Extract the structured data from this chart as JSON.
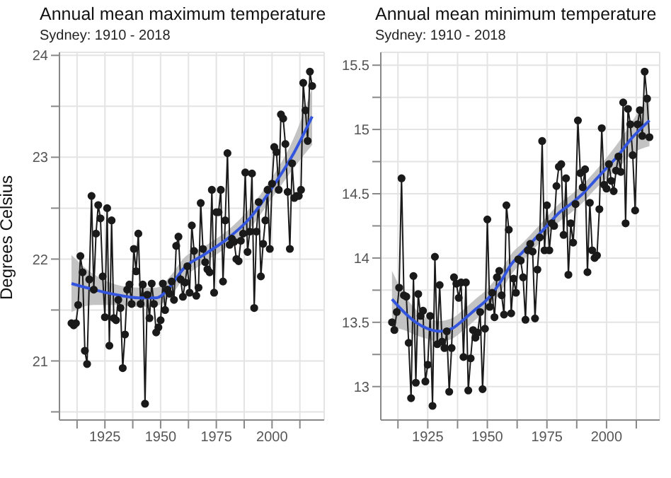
{
  "chart_data": [
    {
      "type": "line",
      "title": "Annual mean maximum temperature",
      "subtitle": "Sydney: 1910 - 2018",
      "ylabel": "Degrees Celsius",
      "x": [
        1910,
        1911,
        1912,
        1913,
        1914,
        1915,
        1916,
        1917,
        1918,
        1919,
        1920,
        1921,
        1922,
        1923,
        1924,
        1925,
        1926,
        1927,
        1928,
        1929,
        1930,
        1931,
        1932,
        1933,
        1934,
        1935,
        1936,
        1937,
        1938,
        1939,
        1940,
        1941,
        1942,
        1943,
        1944,
        1945,
        1946,
        1947,
        1948,
        1949,
        1950,
        1951,
        1952,
        1953,
        1954,
        1955,
        1956,
        1957,
        1958,
        1959,
        1960,
        1961,
        1962,
        1963,
        1964,
        1965,
        1966,
        1967,
        1968,
        1969,
        1970,
        1971,
        1972,
        1973,
        1974,
        1975,
        1976,
        1977,
        1978,
        1979,
        1980,
        1981,
        1982,
        1983,
        1984,
        1985,
        1986,
        1987,
        1988,
        1989,
        1990,
        1991,
        1992,
        1993,
        1994,
        1995,
        1996,
        1997,
        1998,
        1999,
        2000,
        2001,
        2002,
        2003,
        2004,
        2005,
        2006,
        2007,
        2008,
        2009,
        2010,
        2011,
        2012,
        2013,
        2014,
        2015,
        2016,
        2017,
        2018
      ],
      "series": [
        {
          "marker": "circle",
          "color": "#1a1a1a",
          "values": [
            21.37,
            21.35,
            21.37,
            21.55,
            22.03,
            21.87,
            21.1,
            20.97,
            21.8,
            22.62,
            21.7,
            22.25,
            22.53,
            22.4,
            21.83,
            21.43,
            22.5,
            21.15,
            22.38,
            21.42,
            21.4,
            21.6,
            21.52,
            20.93,
            21.26,
            21.7,
            21.75,
            21.56,
            22.1,
            21.88,
            22.25,
            21.56,
            21.75,
            20.58,
            21.65,
            21.42,
            21.76,
            21.56,
            21.28,
            21.33,
            21.4,
            21.76,
            21.5,
            21.7,
            21.66,
            21.78,
            21.6,
            22.13,
            22.22,
            21.8,
            21.63,
            21.77,
            21.93,
            21.67,
            22.33,
            22.08,
            21.64,
            21.72,
            22.55,
            22.1,
            21.97,
            21.9,
            21.87,
            22.68,
            21.67,
            22.46,
            22.46,
            22.68,
            21.78,
            22.38,
            23.04,
            22.14,
            22.2,
            22.17,
            22.0,
            21.98,
            22.18,
            22.25,
            22.85,
            22.07,
            22.27,
            22.84,
            21.52,
            22.27,
            22.56,
            21.83,
            22.15,
            22.38,
            22.68,
            22.1,
            22.74,
            23.1,
            23.05,
            22.68,
            23.42,
            23.38,
            23.13,
            22.66,
            22.1,
            22.94,
            22.6,
            22.62,
            22.62,
            22.68,
            23.73,
            23.46,
            23.16,
            23.84,
            23.7
          ]
        },
        {
          "marker": "none",
          "color": "#3355dd",
          "x": [
            1910,
            1920,
            1930,
            1940,
            1948,
            1955,
            1960,
            1970,
            1980,
            1990,
            2000,
            2010,
            2018
          ],
          "values": [
            21.76,
            21.7,
            21.65,
            21.62,
            21.62,
            21.75,
            21.9,
            22.05,
            22.2,
            22.4,
            22.7,
            23.05,
            23.4
          ],
          "lower": [
            21.48,
            21.55,
            21.55,
            21.53,
            21.54,
            21.65,
            21.8,
            21.97,
            22.12,
            22.3,
            22.6,
            22.9,
            23.12
          ],
          "upper": [
            22.04,
            21.85,
            21.75,
            21.72,
            21.72,
            21.85,
            22.0,
            22.13,
            22.28,
            22.5,
            22.8,
            23.2,
            23.68
          ]
        }
      ],
      "xlim": [
        1904.6,
        2023.4
      ],
      "xticks": [
        {
          "value": 1912.5,
          "label": null
        },
        1925,
        {
          "value": 1937.5,
          "label": null
        },
        1950,
        {
          "value": 1962.5,
          "label": null
        },
        1975,
        {
          "value": 1987.5,
          "label": null
        },
        2000,
        {
          "value": 2012.5,
          "label": null
        }
      ],
      "ylim": [
        20.42,
        24.03
      ],
      "yticks": [
        {
          "value": 20.5,
          "label": null
        },
        21,
        {
          "value": 21.5,
          "label": null
        },
        22,
        {
          "value": 22.5,
          "label": null
        },
        23,
        {
          "value": 23.5,
          "label": null
        },
        24
      ],
      "grid": true,
      "legend": false
    },
    {
      "type": "line",
      "title": "Annual mean minimum temperature",
      "subtitle": "Sydney: 1910 - 2018",
      "x": [
        1910,
        1911,
        1912,
        1913,
        1914,
        1915,
        1916,
        1917,
        1918,
        1919,
        1920,
        1921,
        1922,
        1923,
        1924,
        1925,
        1926,
        1927,
        1928,
        1929,
        1930,
        1931,
        1932,
        1933,
        1934,
        1935,
        1936,
        1937,
        1938,
        1939,
        1940,
        1941,
        1942,
        1943,
        1944,
        1945,
        1946,
        1947,
        1948,
        1949,
        1950,
        1951,
        1952,
        1953,
        1954,
        1955,
        1956,
        1957,
        1958,
        1959,
        1960,
        1961,
        1962,
        1963,
        1964,
        1965,
        1966,
        1967,
        1968,
        1969,
        1970,
        1971,
        1972,
        1973,
        1974,
        1975,
        1976,
        1977,
        1978,
        1979,
        1980,
        1981,
        1982,
        1983,
        1984,
        1985,
        1986,
        1987,
        1988,
        1989,
        1990,
        1991,
        1992,
        1993,
        1994,
        1995,
        1996,
        1997,
        1998,
        1999,
        2000,
        2001,
        2002,
        2003,
        2004,
        2005,
        2006,
        2007,
        2008,
        2009,
        2010,
        2011,
        2012,
        2013,
        2014,
        2015,
        2016,
        2017,
        2018
      ],
      "series": [
        {
          "marker": "circle",
          "color": "#1a1a1a",
          "values": [
            13.5,
            13.44,
            13.58,
            13.77,
            14.62,
            13.71,
            13.7,
            13.34,
            12.91,
            13.86,
            13.03,
            13.72,
            13.55,
            13.59,
            13.04,
            13.17,
            13.55,
            12.85,
            14.01,
            13.33,
            13.79,
            13.35,
            13.3,
            13.43,
            12.96,
            13.3,
            13.85,
            13.8,
            13.69,
            13.81,
            13.23,
            13.81,
            12.97,
            13.22,
            13.44,
            13.38,
            13.42,
            13.58,
            12.98,
            13.45,
            14.3,
            13.62,
            13.73,
            13.54,
            13.85,
            13.9,
            13.71,
            13.56,
            14.41,
            14.22,
            13.57,
            13.84,
            13.73,
            13.99,
            13.98,
            13.85,
            13.52,
            14.06,
            14.11,
            14.05,
            13.53,
            13.91,
            14.16,
            14.91,
            14.06,
            14.41,
            14.06,
            14.27,
            14.25,
            14.56,
            14.71,
            14.73,
            14.18,
            14.62,
            13.87,
            14.27,
            14.12,
            14.42,
            15.07,
            14.66,
            14.55,
            14.69,
            13.89,
            14.43,
            14.06,
            14.0,
            14.02,
            14.38,
            15.01,
            14.57,
            14.54,
            14.73,
            14.6,
            14.52,
            14.68,
            14.79,
            14.67,
            15.21,
            14.27,
            15.16,
            15.04,
            14.8,
            14.37,
            15.04,
            15.15,
            14.95,
            15.45,
            15.24,
            14.94
          ]
        },
        {
          "marker": "none",
          "color": "#3355dd",
          "x": [
            1910,
            1915,
            1920,
            1925,
            1930,
            1935,
            1940,
            1945,
            1950,
            1955,
            1960,
            1965,
            1970,
            1975,
            1980,
            1985,
            1990,
            1995,
            2000,
            2005,
            2010,
            2018
          ],
          "values": [
            13.68,
            13.58,
            13.5,
            13.45,
            13.43,
            13.45,
            13.52,
            13.6,
            13.68,
            13.8,
            13.95,
            14.05,
            14.15,
            14.25,
            14.35,
            14.42,
            14.5,
            14.6,
            14.7,
            14.8,
            14.92,
            15.07
          ],
          "lower": [
            13.46,
            13.44,
            13.4,
            13.37,
            13.35,
            13.37,
            13.44,
            13.52,
            13.6,
            13.72,
            13.87,
            13.98,
            14.08,
            14.18,
            14.28,
            14.35,
            14.43,
            14.53,
            14.62,
            14.7,
            14.8,
            14.87
          ],
          "upper": [
            13.9,
            13.72,
            13.6,
            13.53,
            13.51,
            13.53,
            13.6,
            13.68,
            13.76,
            13.88,
            14.03,
            14.12,
            14.22,
            14.32,
            14.42,
            14.49,
            14.57,
            14.67,
            14.78,
            14.9,
            15.04,
            15.27
          ]
        }
      ],
      "xlim": [
        1905.3,
        2022.3
      ],
      "xticks": [
        {
          "value": 1912.5,
          "label": null
        },
        1925,
        {
          "value": 1937.5,
          "label": null
        },
        1950,
        {
          "value": 1962.5,
          "label": null
        },
        1975,
        {
          "value": 1987.5,
          "label": null
        },
        2000,
        {
          "value": 2012.5,
          "label": null
        }
      ],
      "ylim": [
        12.74,
        15.6
      ],
      "yticks": [
        13,
        {
          "value": 13.25,
          "label": null
        },
        13.5,
        {
          "value": 13.75,
          "label": null
        },
        14,
        {
          "value": 14.25,
          "label": null
        },
        14.5,
        {
          "value": 14.75,
          "label": null
        },
        15,
        {
          "value": 15.25,
          "label": null
        },
        15.5
      ],
      "grid": true,
      "legend": false
    }
  ]
}
